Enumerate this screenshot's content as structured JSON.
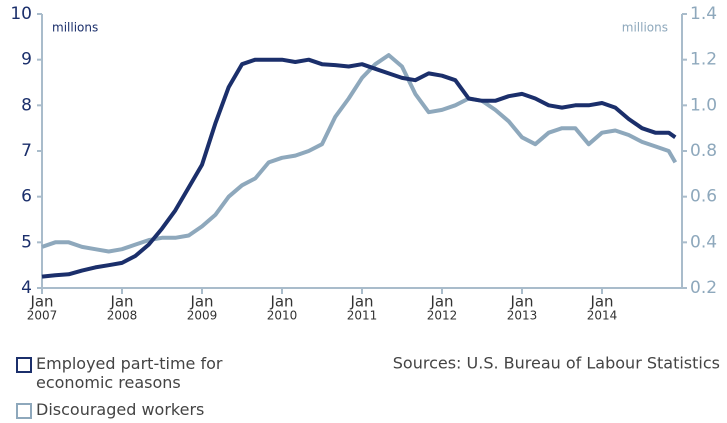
{
  "chart_data": {
    "type": "line",
    "left_unit": "millions",
    "right_unit": "millions",
    "source": "Sources: U.S. Bureau of Labour Statistics",
    "x": [
      "2007-01",
      "2007-03",
      "2007-05",
      "2007-07",
      "2007-09",
      "2007-11",
      "2008-01",
      "2008-03",
      "2008-05",
      "2008-07",
      "2008-09",
      "2008-11",
      "2009-01",
      "2009-03",
      "2009-05",
      "2009-07",
      "2009-09",
      "2009-11",
      "2010-01",
      "2010-03",
      "2010-05",
      "2010-07",
      "2010-09",
      "2010-11",
      "2011-01",
      "2011-03",
      "2011-05",
      "2011-07",
      "2011-09",
      "2011-11",
      "2012-01",
      "2012-03",
      "2012-05",
      "2012-07",
      "2012-09",
      "2012-11",
      "2013-01",
      "2013-03",
      "2013-05",
      "2013-07",
      "2013-09",
      "2013-11",
      "2014-01",
      "2014-03",
      "2014-05",
      "2014-07",
      "2014-09",
      "2014-11",
      "2014-12"
    ],
    "series": [
      {
        "name": "Employed part-time for economic reasons",
        "color": "#1b2f6b",
        "axis": "y",
        "values": [
          4.25,
          4.28,
          4.3,
          4.38,
          4.45,
          4.5,
          4.55,
          4.7,
          4.95,
          5.3,
          5.7,
          6.2,
          6.7,
          7.6,
          8.4,
          8.9,
          9.0,
          9.0,
          9.0,
          8.95,
          9.0,
          8.9,
          8.88,
          8.85,
          8.9,
          8.8,
          8.7,
          8.6,
          8.55,
          8.7,
          8.65,
          8.55,
          8.15,
          8.1,
          8.1,
          8.2,
          8.25,
          8.15,
          8.0,
          7.95,
          8.0,
          8.0,
          8.05,
          7.95,
          7.7,
          7.5,
          7.4,
          7.4,
          7.3
        ]
      },
      {
        "name": "Discouraged workers",
        "color": "#8ea8bc",
        "axis": "y2",
        "values": [
          0.38,
          0.4,
          0.4,
          0.38,
          0.37,
          0.36,
          0.37,
          0.39,
          0.41,
          0.42,
          0.42,
          0.43,
          0.47,
          0.52,
          0.6,
          0.65,
          0.68,
          0.75,
          0.77,
          0.78,
          0.8,
          0.83,
          0.95,
          1.03,
          1.12,
          1.18,
          1.22,
          1.17,
          1.05,
          0.97,
          0.98,
          1.0,
          1.03,
          1.02,
          0.98,
          0.93,
          0.86,
          0.83,
          0.88,
          0.9,
          0.9,
          0.83,
          0.88,
          0.89,
          0.87,
          0.84,
          0.82,
          0.8,
          0.75
        ]
      }
    ],
    "xlim": [
      "2007-01",
      "2015-01"
    ],
    "xticks": [
      {
        "value": "2007-01",
        "label": [
          "Jan",
          "2007"
        ]
      },
      {
        "value": "2008-01",
        "label": [
          "Jan",
          "2008"
        ]
      },
      {
        "value": "2009-01",
        "label": [
          "Jan",
          "2009"
        ]
      },
      {
        "value": "2010-01",
        "label": [
          "Jan",
          "2010"
        ]
      },
      {
        "value": "2011-01",
        "label": [
          "Jan",
          "2011"
        ]
      },
      {
        "value": "2012-01",
        "label": [
          "Jan",
          "2012"
        ]
      },
      {
        "value": "2013-01",
        "label": [
          "Jan",
          "2013"
        ]
      },
      {
        "value": "2014-01",
        "label": [
          "Jan",
          "2014"
        ]
      }
    ],
    "ylim": [
      4,
      10
    ],
    "yticks": [
      4,
      5,
      6,
      7,
      8,
      9,
      10
    ],
    "y2lim": [
      0.2,
      1.4
    ],
    "y2ticks": [
      0.2,
      0.4,
      0.6,
      0.8,
      {
        "value": 1,
        "label": "1.0"
      },
      1.2,
      1.4
    ]
  }
}
